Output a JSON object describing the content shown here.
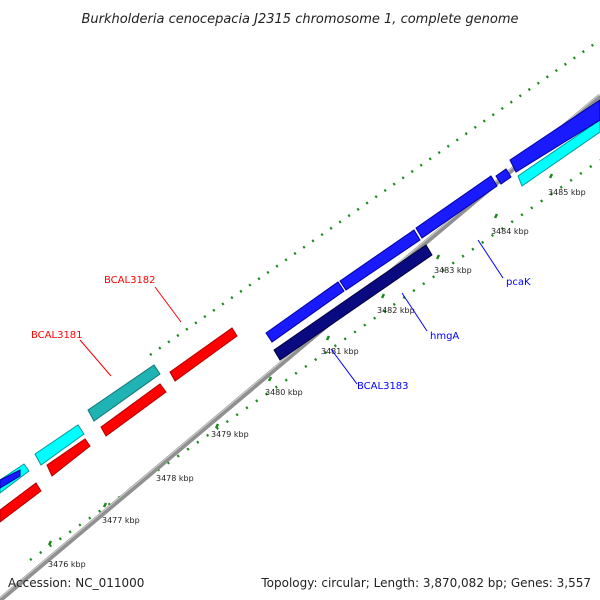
{
  "title": "Burkholderia cenocepacia J2315 chromosome 1, complete genome",
  "footer": {
    "accession": "Accession: NC_011000",
    "summary": "Topology: circular; Length: 3,870,082 bp; Genes: 3,557"
  },
  "colors": {
    "forward_cds": "#0000ff",
    "reverse_cds": "#ff0000",
    "forward_rna": "#00ffff",
    "reverse_rna": "#1a9f9f",
    "highlight_cds": "#000080",
    "backbone": "#808080",
    "tick": "#1a8a1a",
    "red_label": "#ff0000",
    "blue_label": "#0000ff"
  },
  "kbp_ticks": [
    "3476 kbp",
    "3477 kbp",
    "3478 kbp",
    "3479 kbp",
    "3480 kbp",
    "3481 kbp",
    "3482 kbp",
    "3483 kbp",
    "3484 kbp",
    "3485 kbp"
  ],
  "gene_labels": [
    {
      "text": "BCAL3182",
      "color": "red"
    },
    {
      "text": "BCAL3181",
      "color": "red"
    },
    {
      "text": "pcaK",
      "color": "blue"
    },
    {
      "text": "hmgA",
      "color": "blue"
    },
    {
      "text": "BCAL3183",
      "color": "blue"
    }
  ],
  "legend_icons": [
    "gene-arrow-icon"
  ]
}
